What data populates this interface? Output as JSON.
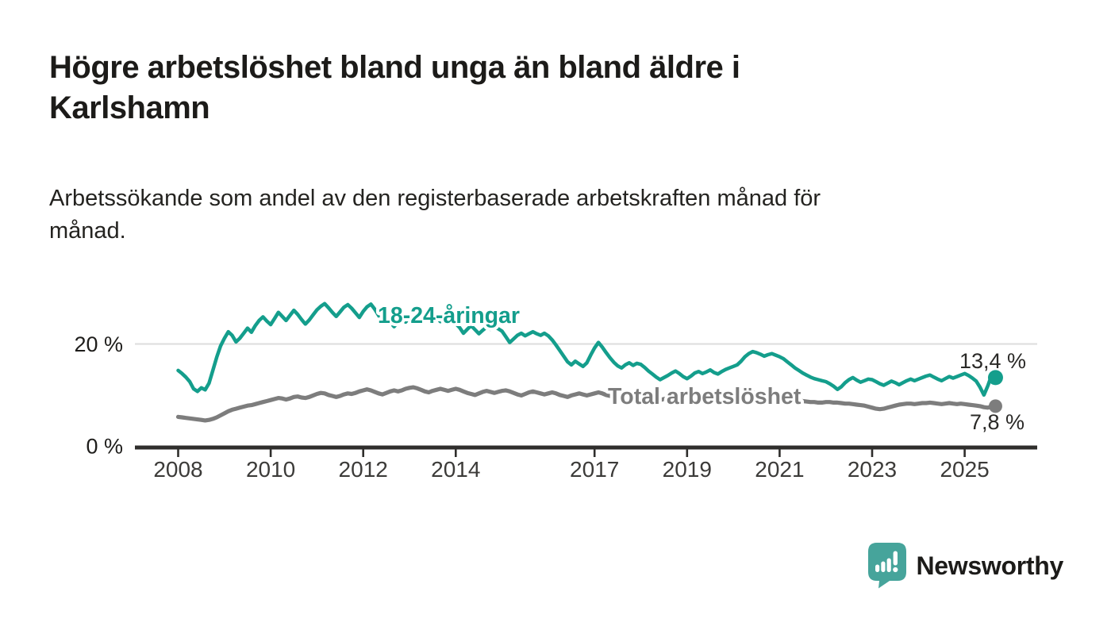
{
  "header": {
    "title": "Högre arbetslöshet bland unga än bland äldre i Karlshamn",
    "title_lines": [
      "Högre arbetslöshet bland unga än bland äldre i",
      "Karlshamn"
    ],
    "subtitle": "Arbetssökande som andel av den registerbaserade arbetskraften månad för månad.",
    "subtitle_lines": [
      "Arbetssökande som andel av den registerbaserade arbetskraften månad för",
      "månad."
    ]
  },
  "chart_data": {
    "type": "line",
    "title": "Högre arbetslöshet bland unga än bland äldre i Karlshamn",
    "subtitle": "Arbetssökande som andel av den registerbaserade arbetskraften månad för månad.",
    "unit": "%",
    "x_interval": "monthly",
    "x_start": "2008-01",
    "x_end": "2025-09",
    "xlabel": "",
    "ylabel": "",
    "ylim": [
      0,
      29
    ],
    "legend_position": "inline-labels",
    "grid": "horizontal gridline at 20 % only",
    "y_ticks": [
      {
        "value": 0,
        "label": "0 %"
      },
      {
        "value": 20,
        "label": "20 %"
      }
    ],
    "x_ticks": [
      2008,
      2010,
      2012,
      2014,
      2017,
      2019,
      2021,
      2023,
      2025
    ],
    "series": [
      {
        "name": "18-24-åringar",
        "color": "#149e8c",
        "end_value": 13.4,
        "end_label": "13,4 %",
        "values": [
          14.8,
          14.2,
          13.5,
          12.6,
          11.2,
          10.7,
          11.4,
          11.0,
          12.3,
          14.8,
          17.4,
          19.6,
          21.1,
          22.4,
          21.7,
          20.4,
          21.1,
          22.1,
          23.1,
          22.3,
          23.6,
          24.6,
          25.3,
          24.5,
          23.8,
          25.0,
          26.2,
          25.4,
          24.6,
          25.6,
          26.6,
          25.8,
          24.8,
          23.9,
          24.7,
          25.7,
          26.7,
          27.4,
          27.9,
          27.1,
          26.2,
          25.4,
          26.3,
          27.2,
          27.7,
          27.0,
          26.1,
          25.2,
          26.4,
          27.3,
          27.8,
          26.8,
          25.6,
          24.3,
          25.2,
          24.3,
          23.4,
          24.2,
          25.1,
          24.3,
          25.2,
          25.9,
          26.5,
          25.7,
          24.8,
          25.4,
          26.1,
          25.2,
          24.4,
          24.9,
          25.5,
          24.7,
          24.0,
          23.2,
          22.1,
          22.9,
          23.6,
          22.8,
          22.0,
          22.7,
          23.3,
          22.9,
          23.3,
          23.0,
          22.5,
          21.4,
          20.3,
          21.0,
          21.7,
          22.1,
          21.6,
          22.0,
          22.4,
          22.0,
          21.7,
          22.1,
          21.6,
          20.8,
          19.8,
          18.7,
          17.6,
          16.5,
          15.9,
          16.6,
          16.1,
          15.6,
          16.3,
          17.8,
          19.2,
          20.3,
          19.4,
          18.3,
          17.3,
          16.4,
          15.7,
          15.3,
          15.9,
          16.3,
          15.8,
          16.2,
          16.0,
          15.4,
          14.7,
          14.1,
          13.5,
          13.0,
          13.4,
          13.8,
          14.3,
          14.7,
          14.2,
          13.6,
          13.2,
          13.7,
          14.3,
          14.6,
          14.2,
          14.5,
          14.9,
          14.4,
          14.1,
          14.6,
          15.0,
          15.3,
          15.6,
          15.9,
          16.6,
          17.5,
          18.1,
          18.5,
          18.3,
          18.0,
          17.6,
          17.9,
          18.1,
          17.8,
          17.5,
          17.1,
          16.5,
          15.9,
          15.3,
          14.8,
          14.3,
          13.9,
          13.5,
          13.2,
          13.0,
          12.8,
          12.6,
          12.2,
          11.7,
          11.1,
          11.6,
          12.4,
          13.0,
          13.4,
          12.9,
          12.5,
          12.8,
          13.1,
          13.0,
          12.6,
          12.2,
          11.9,
          12.3,
          12.7,
          12.4,
          12.0,
          12.4,
          12.8,
          13.1,
          12.8,
          13.1,
          13.4,
          13.7,
          13.9,
          13.5,
          13.1,
          12.8,
          13.2,
          13.6,
          13.3,
          13.6,
          13.9,
          14.2,
          13.8,
          13.3,
          12.7,
          11.5,
          10.0,
          11.8,
          13.9,
          13.4
        ]
      },
      {
        "name": "Total arbetslöshet",
        "color": "#7d7d7d",
        "end_value": 7.8,
        "end_label": "7,8 %",
        "values": [
          5.7,
          5.6,
          5.5,
          5.4,
          5.3,
          5.2,
          5.1,
          5.0,
          5.1,
          5.3,
          5.6,
          6.0,
          6.4,
          6.8,
          7.1,
          7.3,
          7.5,
          7.7,
          7.9,
          8.0,
          8.2,
          8.4,
          8.6,
          8.8,
          9.0,
          9.2,
          9.4,
          9.3,
          9.1,
          9.3,
          9.6,
          9.7,
          9.5,
          9.4,
          9.6,
          9.9,
          10.2,
          10.4,
          10.3,
          10.0,
          9.8,
          9.6,
          9.8,
          10.1,
          10.3,
          10.2,
          10.4,
          10.7,
          10.9,
          11.1,
          10.9,
          10.6,
          10.3,
          10.1,
          10.4,
          10.7,
          10.9,
          10.7,
          10.9,
          11.2,
          11.4,
          11.5,
          11.3,
          11.0,
          10.7,
          10.5,
          10.8,
          11.0,
          11.2,
          11.0,
          10.8,
          11.0,
          11.2,
          11.0,
          10.7,
          10.4,
          10.2,
          10.0,
          10.3,
          10.6,
          10.8,
          10.6,
          10.4,
          10.6,
          10.8,
          10.9,
          10.7,
          10.4,
          10.1,
          9.9,
          10.2,
          10.5,
          10.7,
          10.5,
          10.3,
          10.1,
          10.3,
          10.5,
          10.3,
          10.0,
          9.8,
          9.6,
          9.9,
          10.1,
          10.3,
          10.1,
          9.9,
          10.1,
          10.3,
          10.5,
          10.3,
          10.0,
          9.8,
          9.6,
          9.8,
          10.0,
          10.2,
          10.0,
          9.8,
          9.6,
          9.7,
          9.9,
          9.7,
          9.4,
          9.2,
          9.0,
          9.2,
          9.4,
          9.5,
          9.3,
          9.1,
          9.2,
          9.3,
          9.4,
          9.2,
          9.0,
          8.9,
          8.8,
          9.0,
          9.2,
          9.3,
          9.2,
          9.3,
          9.5,
          9.6,
          9.7,
          9.9,
          10.2,
          10.4,
          10.5,
          10.4,
          10.3,
          10.1,
          10.0,
          9.9,
          9.8,
          9.7,
          9.5,
          9.3,
          9.1,
          9.0,
          8.9,
          8.8,
          8.7,
          8.6,
          8.6,
          8.5,
          8.5,
          8.6,
          8.6,
          8.5,
          8.5,
          8.4,
          8.3,
          8.3,
          8.2,
          8.1,
          8.0,
          7.9,
          7.7,
          7.5,
          7.3,
          7.2,
          7.3,
          7.5,
          7.7,
          7.9,
          8.1,
          8.2,
          8.3,
          8.3,
          8.2,
          8.3,
          8.4,
          8.4,
          8.5,
          8.4,
          8.3,
          8.2,
          8.3,
          8.4,
          8.3,
          8.2,
          8.3,
          8.2,
          8.1,
          8.0,
          7.9,
          7.8,
          7.6,
          7.5,
          7.7,
          7.8
        ]
      }
    ],
    "colors": {
      "youth_line": "#149e8c",
      "total_line": "#7d7d7d",
      "axis": "#2f2e2c",
      "gridline": "#dcdcdc",
      "tick_label": "#3c3b39",
      "end_label_text": "#2a2927"
    }
  },
  "branding": {
    "name": "Newsworthy",
    "color": "#46a49b"
  }
}
